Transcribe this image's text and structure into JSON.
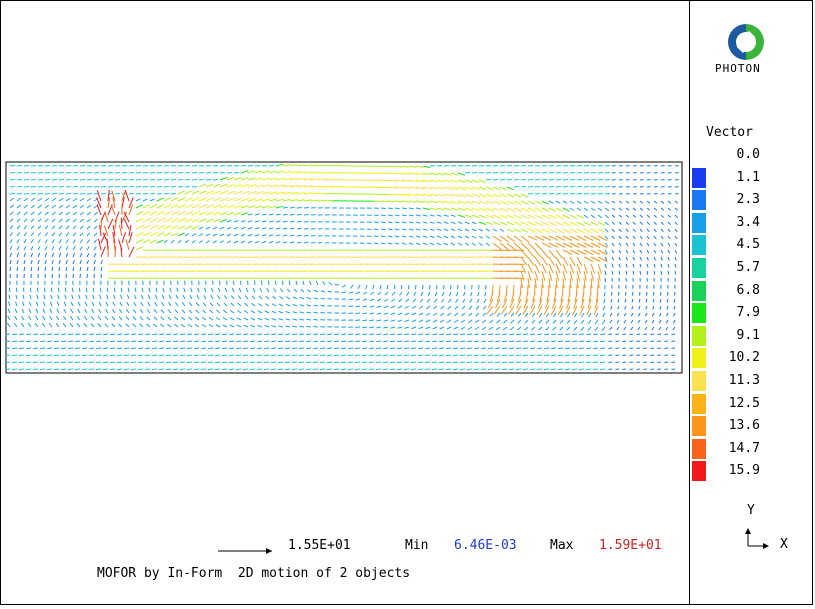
{
  "app": {
    "logo_text": "PHOTON",
    "caption": "MOFOR by In-Form  2D motion of 2 objects"
  },
  "legend": {
    "title": "Vector",
    "entries": [
      {
        "label": "0.0",
        "color": "#ffffff"
      },
      {
        "label": "1.1",
        "color": "#1a3cf0"
      },
      {
        "label": "2.3",
        "color": "#1a78f0"
      },
      {
        "label": "3.4",
        "color": "#1aa0e6"
      },
      {
        "label": "4.5",
        "color": "#1ac3d2"
      },
      {
        "label": "5.7",
        "color": "#1ad2a0"
      },
      {
        "label": "6.8",
        "color": "#1ad25a"
      },
      {
        "label": "7.9",
        "color": "#1ae61a"
      },
      {
        "label": "9.1",
        "color": "#b4f01a"
      },
      {
        "label": "10.2",
        "color": "#f0f01a"
      },
      {
        "label": "11.3",
        "color": "#fae150"
      },
      {
        "label": "12.5",
        "color": "#fab41a"
      },
      {
        "label": "13.6",
        "color": "#fa961a"
      },
      {
        "label": "14.7",
        "color": "#fa641a"
      },
      {
        "label": "15.9",
        "color": "#f01a1a"
      }
    ]
  },
  "axis": {
    "y_label": "Y",
    "x_label": "X"
  },
  "footer": {
    "ref_value": "1.55E+01",
    "min_label": "Min",
    "min_value": "6.46E-03",
    "max_label": "Max",
    "max_value": "1.59E+01"
  },
  "chart_data": {
    "type": "vector-field",
    "title": "",
    "xlabel": "X",
    "ylabel": "Y",
    "color_scale": [
      0.0,
      1.1,
      2.3,
      3.4,
      4.5,
      5.7,
      6.8,
      7.9,
      9.1,
      10.2,
      11.3,
      12.5,
      13.6,
      14.7,
      15.9
    ],
    "reference_vector": 15.5,
    "min": 0.00646,
    "max": 15.9
  }
}
